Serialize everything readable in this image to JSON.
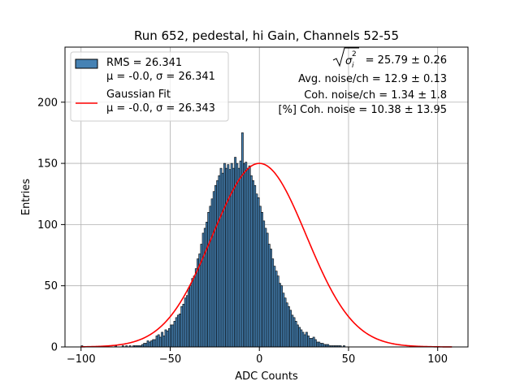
{
  "chart_data": {
    "type": "bar",
    "title": "Run 652, pedestal, hi Gain, Channels 52-55",
    "xlabel": "ADC Counts",
    "ylabel": "Entries",
    "xlim": [
      -109,
      117
    ],
    "ylim": [
      0,
      245
    ],
    "xticks": [
      -100,
      -50,
      0,
      50,
      100
    ],
    "yticks": [
      0,
      50,
      100,
      150,
      200
    ],
    "xtick_labels": [
      "−100",
      "−50",
      "0",
      "50",
      "100"
    ],
    "ytick_labels": [
      "0",
      "50",
      "100",
      "150",
      "200"
    ],
    "grid": true,
    "bar_color": "#4682b4",
    "fit_color": "#ff0000",
    "legend_position": "top-left",
    "bins": {
      "start": -100,
      "width": 1,
      "counts": [
        1,
        0,
        0,
        0,
        0,
        0,
        0,
        0,
        0,
        0,
        0,
        0,
        0,
        0,
        0,
        0,
        0,
        0,
        0,
        1,
        0,
        0,
        0,
        1,
        0,
        1,
        0,
        1,
        0,
        1,
        1,
        1,
        1,
        1,
        2,
        3,
        3,
        5,
        4,
        5,
        6,
        6,
        9,
        10,
        8,
        12,
        9,
        14,
        13,
        15,
        18,
        18,
        21,
        24,
        26,
        27,
        33,
        35,
        40,
        42,
        48,
        50,
        56,
        58,
        64,
        72,
        76,
        84,
        93,
        97,
        102,
        110,
        115,
        121,
        127,
        132,
        136,
        140,
        146,
        142,
        150,
        146,
        149,
        145,
        150,
        146,
        155,
        150,
        146,
        152,
        175,
        150,
        151,
        146,
        148,
        140,
        136,
        132,
        125,
        122,
        115,
        110,
        103,
        97,
        93,
        84,
        80,
        72,
        66,
        62,
        58,
        52,
        50,
        44,
        40,
        36,
        33,
        30,
        26,
        24,
        21,
        18,
        16,
        14,
        12,
        10,
        12,
        9,
        7,
        7,
        8,
        6,
        4,
        4,
        3,
        3,
        2,
        2,
        2,
        1,
        1,
        1,
        1,
        1,
        1,
        1,
        0,
        1,
        0,
        0,
        0,
        0,
        0,
        0,
        0,
        0,
        0,
        0,
        0,
        0,
        0,
        0,
        0,
        0,
        0,
        0,
        0,
        0,
        0,
        0,
        0,
        0,
        0,
        0,
        0,
        0,
        0,
        0,
        0,
        0,
        0,
        0,
        0,
        0,
        0,
        0,
        0,
        0,
        0,
        0,
        0,
        0,
        0,
        0,
        0,
        0,
        0,
        0,
        0,
        0,
        0,
        0,
        0,
        0,
        0,
        0,
        0,
        0,
        0,
        0
      ]
    },
    "series": [
      {
        "name": "RMS = 26.341",
        "name_line2": "μ = -0.0, σ = 26.341",
        "kind": "histogram"
      },
      {
        "name": "Gaussian Fit",
        "name_line2": "μ = -0.0, σ = 26.343",
        "kind": "line",
        "amplitude": 150,
        "mu": 0.0,
        "sigma": 26.343,
        "x_range": [
          -100,
          108
        ]
      }
    ],
    "annotations": [
      "= 25.79 ± 0.26",
      "Avg. noise/ch = 12.9 ± 0.13",
      "Coh. noise/ch = 1.34 ± 1.8",
      "[%] Coh. noise = 10.38 ± 13.95"
    ]
  }
}
